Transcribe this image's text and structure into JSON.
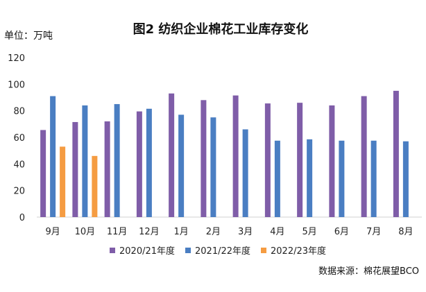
{
  "chart_data": {
    "type": "bar",
    "title": "图2 纺织企业棉花工业库存变化",
    "unit_label": "单位：万吨",
    "source": "数据来源：棉花展望BCO",
    "categories": [
      "9月",
      "10月",
      "11月",
      "12月",
      "1月",
      "2月",
      "3月",
      "4月",
      "5月",
      "6月",
      "7月",
      "8月"
    ],
    "ylim": [
      0,
      120
    ],
    "yticks": [
      0,
      20,
      40,
      60,
      80,
      100,
      120
    ],
    "grid": false,
    "legend_position": "bottom",
    "series": [
      {
        "name": "2020/21年度",
        "color": "#7f5da8",
        "values": [
          65.5,
          71.5,
          72,
          79.5,
          93,
          88,
          91.5,
          85.5,
          86,
          84,
          91,
          95
        ]
      },
      {
        "name": "2021/22年度",
        "color": "#4a7ec2",
        "values": [
          91,
          84,
          85,
          81.5,
          77,
          75,
          66,
          57.5,
          58.5,
          57.5,
          57.5,
          57
        ]
      },
      {
        "name": "2022/23年度",
        "color": "#f59c42",
        "values": [
          53,
          46,
          null,
          null,
          null,
          null,
          null,
          null,
          null,
          null,
          null,
          null
        ]
      }
    ]
  }
}
